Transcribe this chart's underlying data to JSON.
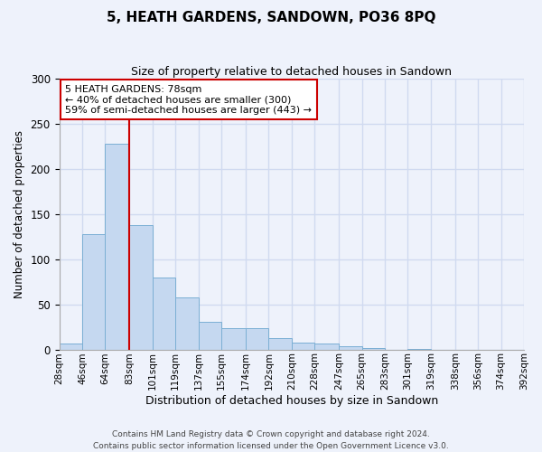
{
  "title": "5, HEATH GARDENS, SANDOWN, PO36 8PQ",
  "subtitle": "Size of property relative to detached houses in Sandown",
  "xlabel": "Distribution of detached houses by size in Sandown",
  "ylabel": "Number of detached properties",
  "bar_values": [
    7,
    128,
    228,
    138,
    80,
    58,
    31,
    24,
    24,
    13,
    8,
    7,
    4,
    2,
    0,
    1,
    0
  ],
  "bin_labels": [
    "28sqm",
    "46sqm",
    "64sqm",
    "83sqm",
    "101sqm",
    "119sqm",
    "137sqm",
    "155sqm",
    "174sqm",
    "192sqm",
    "210sqm",
    "228sqm",
    "247sqm",
    "265sqm",
    "283sqm",
    "301sqm",
    "319sqm",
    "338sqm",
    "356sqm",
    "374sqm",
    "392sqm"
  ],
  "bar_color": "#c5d8f0",
  "bar_edge_color": "#7bafd4",
  "background_color": "#eef2fb",
  "grid_color": "#d0daf0",
  "vline_color": "#cc0000",
  "annotation_text": "5 HEATH GARDENS: 78sqm\n← 40% of detached houses are smaller (300)\n59% of semi-detached houses are larger (443) →",
  "annotation_box_color": "#ffffff",
  "annotation_box_edge": "#cc0000",
  "ylim": [
    0,
    300
  ],
  "yticks": [
    0,
    50,
    100,
    150,
    200,
    250,
    300
  ],
  "footer_line1": "Contains HM Land Registry data © Crown copyright and database right 2024.",
  "footer_line2": "Contains public sector information licensed under the Open Government Licence v3.0.",
  "bin_edges": [
    28,
    46,
    64,
    83,
    101,
    119,
    137,
    155,
    174,
    192,
    210,
    228,
    247,
    265,
    283,
    301,
    319,
    338,
    356,
    374,
    392
  ]
}
